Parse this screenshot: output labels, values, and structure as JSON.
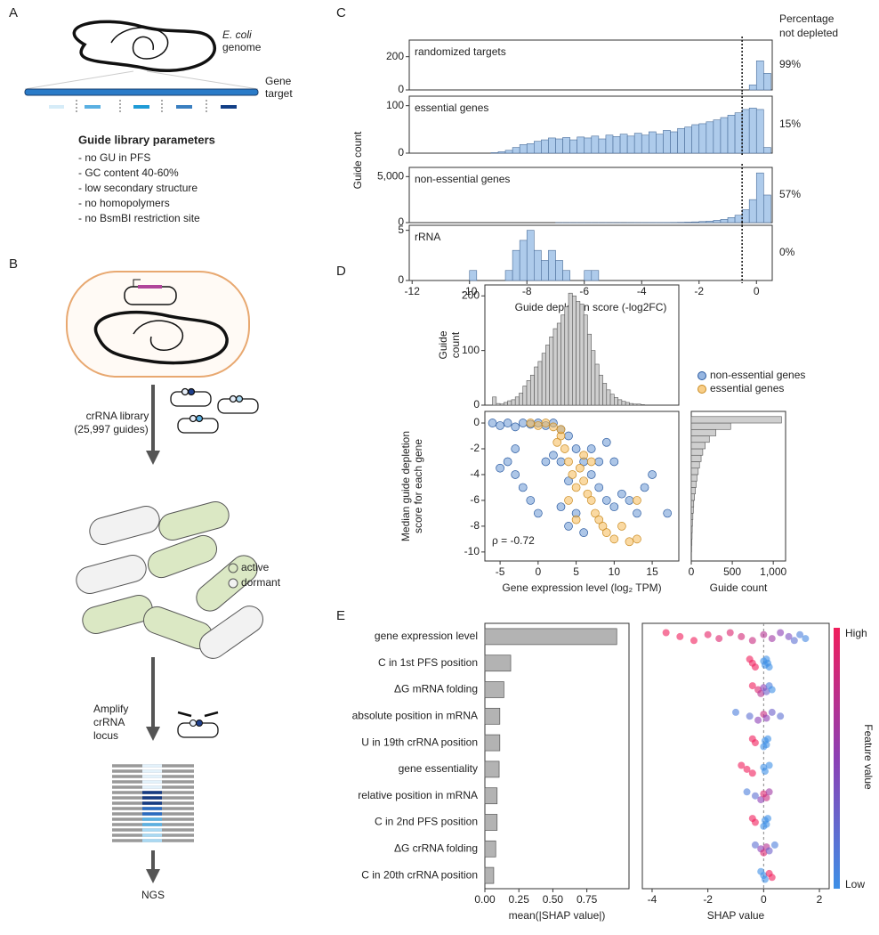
{
  "panel_labels": [
    "A",
    "B",
    "C",
    "D",
    "E"
  ],
  "panel_a": {
    "genome_label": [
      "E. coli",
      "genome"
    ],
    "gene_target_label": [
      "Gene",
      "target"
    ],
    "params_title": "Guide library parameters",
    "params": [
      "- no GU in PFS",
      "- GC content 40-60%",
      "- low secondary structure",
      "- no homopolymers",
      "- no BsmBI restriction site"
    ]
  },
  "panel_b": {
    "library_label": [
      "crRNA library",
      "(25,997 guides)"
    ],
    "legend": [
      "active",
      "dormant"
    ],
    "amplify_label": [
      "Amplify",
      "crRNA",
      "locus"
    ],
    "ngs": "NGS"
  },
  "panel_c": {
    "ylabel": "Guide count",
    "pct_header": [
      "Percentage",
      "not depleted"
    ]
  },
  "chart_data": [
    {
      "type": "histogram",
      "title": "randomized targets",
      "annotation": "99%",
      "color": "#aecbeb",
      "threshold": -0.5,
      "bins": [
        -12,
        -11.75,
        -11.5,
        -11.25,
        -11,
        -10.75,
        -10.5,
        -10.25,
        -10,
        -9.75,
        -9.5,
        -9.25,
        -9,
        -8.75,
        -8.5,
        -8.25,
        -8,
        -7.75,
        -7.5,
        -7.25,
        -7,
        -6.75,
        -6.5,
        -6.25,
        -6,
        -5.75,
        -5.5,
        -5.25,
        -5,
        -4.75,
        -4.5,
        -4.25,
        -4,
        -3.75,
        -3.5,
        -3.25,
        -3,
        -2.75,
        -2.5,
        -2.25,
        -2,
        -1.75,
        -1.5,
        -1.25,
        -1,
        -0.75,
        -0.5,
        -0.25,
        0,
        0.25,
        0.5
      ],
      "values": [
        0,
        0,
        0,
        0,
        0,
        0,
        0,
        0,
        0,
        0,
        0,
        0,
        0,
        0,
        0,
        0,
        0,
        0,
        0,
        0,
        0,
        0,
        0,
        0,
        0,
        0,
        0,
        0,
        0,
        0,
        0,
        0,
        0,
        0,
        0,
        0,
        0,
        0,
        0,
        0,
        0,
        0,
        0,
        0,
        0,
        0,
        0,
        30,
        175,
        100
      ],
      "xlim": [
        -12.1,
        0.55
      ],
      "ylim": [
        0,
        300
      ],
      "yticks": [
        0,
        200
      ]
    },
    {
      "type": "histogram",
      "title": "essential genes",
      "annotation": "15%",
      "color": "#aecbeb",
      "threshold": -0.5,
      "bins": [
        -12,
        -11.75,
        -11.5,
        -11.25,
        -11,
        -10.75,
        -10.5,
        -10.25,
        -10,
        -9.75,
        -9.5,
        -9.25,
        -9,
        -8.75,
        -8.5,
        -8.25,
        -8,
        -7.75,
        -7.5,
        -7.25,
        -7,
        -6.75,
        -6.5,
        -6.25,
        -6,
        -5.75,
        -5.5,
        -5.25,
        -5,
        -4.75,
        -4.5,
        -4.25,
        -4,
        -3.75,
        -3.5,
        -3.25,
        -3,
        -2.75,
        -2.5,
        -2.25,
        -2,
        -1.75,
        -1.5,
        -1.25,
        -1,
        -0.75,
        -0.5,
        -0.25,
        0,
        0.25,
        0.5
      ],
      "values": [
        0,
        0,
        0,
        0,
        0,
        0,
        0,
        0,
        0,
        0,
        0,
        1,
        3,
        6,
        12,
        18,
        20,
        25,
        28,
        32,
        30,
        33,
        28,
        34,
        32,
        36,
        30,
        38,
        35,
        40,
        36,
        42,
        38,
        45,
        40,
        48,
        45,
        52,
        55,
        60,
        62,
        66,
        70,
        75,
        80,
        85,
        92,
        95,
        92,
        12
      ],
      "xlim": [
        -12.1,
        0.55
      ],
      "ylim": [
        0,
        120
      ],
      "yticks": [
        0,
        100
      ]
    },
    {
      "type": "histogram",
      "title": "non-essential genes",
      "annotation": "57%",
      "color": "#aecbeb",
      "threshold": -0.5,
      "bins": [
        -12,
        -11.75,
        -11.5,
        -11.25,
        -11,
        -10.75,
        -10.5,
        -10.25,
        -10,
        -9.75,
        -9.5,
        -9.25,
        -9,
        -8.75,
        -8.5,
        -8.25,
        -8,
        -7.75,
        -7.5,
        -7.25,
        -7,
        -6.75,
        -6.5,
        -6.25,
        -6,
        -5.75,
        -5.5,
        -5.25,
        -5,
        -4.75,
        -4.5,
        -4.25,
        -4,
        -3.75,
        -3.5,
        -3.25,
        -3,
        -2.75,
        -2.5,
        -2.25,
        -2,
        -1.75,
        -1.5,
        -1.25,
        -1,
        -0.75,
        -0.5,
        -0.25,
        0,
        0.25,
        0.5
      ],
      "values": [
        0,
        0,
        0,
        0,
        0,
        0,
        0,
        0,
        0,
        0,
        0,
        0,
        0,
        0,
        0,
        0,
        0,
        0,
        0,
        0,
        2,
        2,
        2,
        2,
        2,
        2,
        2,
        2,
        2,
        2,
        5,
        8,
        10,
        12,
        15,
        20,
        25,
        35,
        50,
        80,
        120,
        160,
        250,
        350,
        550,
        800,
        1400,
        2500,
        5400,
        3000
      ],
      "xlim": [
        -12.1,
        0.55
      ],
      "ylim": [
        0,
        6000
      ],
      "yticks": [
        0,
        {
          "value": 5000,
          "label": "5,000"
        }
      ]
    },
    {
      "type": "histogram",
      "title": "rRNA",
      "annotation": "0%",
      "color": "#aecbeb",
      "threshold": -0.5,
      "bins": [
        -12,
        -11.75,
        -11.5,
        -11.25,
        -11,
        -10.75,
        -10.5,
        -10.25,
        -10,
        -9.75,
        -9.5,
        -9.25,
        -9,
        -8.75,
        -8.5,
        -8.25,
        -8,
        -7.75,
        -7.5,
        -7.25,
        -7,
        -6.75,
        -6.5,
        -6.25,
        -6,
        -5.75,
        -5.5,
        -5.25,
        -5,
        -4.75,
        -4.5,
        -4.25,
        -4,
        -3.75,
        -3.5,
        -3.25,
        -3,
        -2.75,
        -2.5,
        -2.25,
        -2,
        -1.75,
        -1.5,
        -1.25,
        -1,
        -0.75,
        -0.5,
        -0.25,
        0,
        0.25,
        0.5
      ],
      "values": [
        0,
        0,
        0,
        0,
        0,
        0,
        0,
        0,
        1,
        0,
        0,
        0,
        0,
        1,
        3,
        4,
        5,
        3,
        2,
        3,
        2,
        1,
        0,
        0,
        1,
        1,
        0,
        0,
        0,
        0,
        0,
        0,
        0,
        0,
        0,
        0,
        0,
        0,
        0,
        0,
        0,
        0,
        0,
        0,
        0,
        0,
        0,
        0,
        0,
        0
      ],
      "xlim": [
        -12.1,
        0.55
      ],
      "ylim": [
        0,
        5.5
      ],
      "yticks": [
        0,
        5
      ],
      "xticks": [
        -12,
        -10,
        -8,
        -6,
        -4,
        -2,
        0
      ],
      "xlabel": "Guide depletion score (-log2FC)"
    },
    {
      "type": "histogram",
      "color": "#cfcfcf",
      "ylabel": [
        "Guide",
        "count"
      ],
      "bins": [
        -6,
        -5.5,
        -5,
        -4.5,
        -4,
        -3.5,
        -3,
        -2.5,
        -2,
        -1.5,
        -1,
        -0.5,
        0,
        0.5,
        1,
        1.5,
        2,
        2.5,
        3,
        3.5,
        4,
        4.5,
        5,
        5.5,
        6,
        6.5,
        7,
        7.5,
        8,
        8.5,
        9,
        9.5,
        10,
        10.5,
        11,
        11.5,
        12,
        12.5,
        13,
        13.5,
        14
      ],
      "values": [
        15,
        3,
        2,
        5,
        8,
        10,
        15,
        22,
        35,
        45,
        55,
        70,
        80,
        95,
        110,
        125,
        140,
        150,
        165,
        180,
        205,
        200,
        190,
        185,
        165,
        130,
        100,
        75,
        55,
        40,
        28,
        20,
        14,
        10,
        7,
        5,
        3,
        2,
        2,
        1
      ],
      "xlim": [
        -7,
        18.5
      ],
      "ylim": [
        0,
        220
      ],
      "yticks": [
        0,
        100,
        200
      ]
    },
    {
      "type": "scatter",
      "xlim": [
        -7,
        18.5
      ],
      "ylim": [
        -10.7,
        0.9
      ],
      "xticks": [
        -5,
        0,
        5,
        10,
        15
      ],
      "yticks": [
        0,
        -2,
        -4,
        -6,
        -8,
        -10
      ],
      "xlabel": "Gene expression level (log₂ TPM)",
      "ylabel": [
        "Median guide depletion",
        "score for each gene"
      ],
      "annotation": "ρ = -0.72",
      "series": [
        {
          "name": "non-essential genes",
          "color": "#6a97d4",
          "x": [
            -6,
            -5,
            -4,
            -3,
            -2,
            -1,
            0,
            1,
            2,
            3,
            4,
            5,
            6,
            7,
            8,
            9,
            10,
            11,
            12,
            13,
            -5,
            -4,
            -3,
            -2,
            -1,
            0,
            1,
            2,
            3,
            4,
            5,
            6,
            7,
            8,
            9,
            10,
            15,
            17,
            14,
            -3,
            3,
            4
          ],
          "values": [
            0,
            -0.2,
            0,
            -0.3,
            0,
            -0.1,
            0,
            -0.2,
            0,
            -0.5,
            -1,
            -2,
            -3,
            -4,
            -5,
            -6,
            -6.5,
            -5.5,
            -6,
            -7,
            -3.5,
            -3,
            -4,
            -5,
            -6,
            -7,
            -3,
            -2.5,
            -6.5,
            -8,
            -7,
            -8.5,
            -2,
            -3,
            -1.5,
            -3,
            -4,
            -7,
            -5,
            -2,
            -3,
            -4.5
          ]
        },
        {
          "name": "essential genes",
          "color": "#f5b955",
          "x": [
            0,
            1,
            2,
            3,
            3.5,
            4,
            4.5,
            5,
            5.5,
            6,
            6.5,
            7,
            7.5,
            8,
            8.5,
            9,
            10,
            11,
            12,
            13,
            2.5,
            4,
            5,
            6,
            7,
            3,
            -1,
            13
          ],
          "values": [
            -0.2,
            0,
            -0.3,
            -1,
            -2,
            -3,
            -4,
            -5,
            -3.5,
            -4.5,
            -5.5,
            -6,
            -7,
            -7.5,
            -8,
            -8.5,
            -9,
            -8,
            -9.2,
            -9,
            -1.5,
            -6,
            -7.5,
            -2.5,
            -3,
            -0.5,
            0,
            -6
          ]
        }
      ]
    },
    {
      "type": "histogram",
      "orientation": "horizontal",
      "color": "#cfcfcf",
      "xlabel": "Guide count",
      "bins": [
        -10,
        -9.5,
        -9,
        -8.5,
        -8,
        -7.5,
        -7,
        -6.5,
        -6,
        -5.5,
        -5,
        -4.5,
        -4,
        -3.5,
        -3,
        -2.5,
        -2,
        -1.5,
        -1,
        -0.5,
        0,
        0.5
      ],
      "values": [
        5,
        8,
        10,
        12,
        15,
        20,
        25,
        30,
        40,
        50,
        60,
        70,
        85,
        100,
        120,
        140,
        170,
        220,
        300,
        480,
        1100
      ],
      "xlim": [
        0,
        1150
      ],
      "ylim": [
        -10.7,
        0.9
      ],
      "xticks": [
        0,
        500,
        {
          "value": 1000,
          "label": "1,000"
        }
      ]
    },
    {
      "type": "bar",
      "orientation": "horizontal",
      "color": "#b3b3b3",
      "xlabel": "mean(|SHAP value|)",
      "categories": [
        "gene expression level",
        "C in 1st PFS position",
        "ΔG mRNA folding",
        "absolute position in mRNA",
        "U in 19th crRNA position",
        "gene essentiality",
        "relative position in mRNA",
        "C in 2nd PFS position",
        "ΔG crRNA folding",
        "C in 20th crRNA position"
      ],
      "values": [
        0.97,
        0.19,
        0.14,
        0.11,
        0.11,
        0.105,
        0.09,
        0.09,
        0.08,
        0.065
      ],
      "xlim": [
        0,
        1.06
      ],
      "xticks": [
        {
          "value": 0,
          "label": "0.00"
        },
        {
          "value": 0.25,
          "label": "0.25"
        },
        {
          "value": 0.5,
          "label": "0.50"
        },
        {
          "value": 0.75,
          "label": "0.75"
        }
      ]
    },
    {
      "type": "beeswarm",
      "xlabel": "SHAP value",
      "xlim": [
        -4.35,
        2.35
      ],
      "xticks": [
        -4,
        -2,
        0,
        2
      ],
      "colors": {
        "low": "#3d8fe6",
        "mid": "#8c3fb5",
        "high": "#f01e5c"
      },
      "colorbar": {
        "high": "High",
        "low": "Low",
        "label": "Feature value"
      },
      "rows": [
        {
          "shap": [
            -3.5,
            -3,
            -2.5,
            -2,
            -1.6,
            -1.2,
            -0.8,
            -0.4,
            0,
            0.3,
            0.6,
            0.9,
            1.1,
            1.3,
            1.5
          ],
          "feature_value": [
            1,
            1,
            1,
            0.95,
            0.9,
            0.9,
            0.85,
            0.8,
            0.7,
            0.6,
            0.5,
            0.4,
            0.2,
            0.1,
            0.05
          ]
        },
        {
          "shap": [
            -0.5,
            -0.4,
            -0.3,
            0,
            0.05,
            0.1,
            0.15,
            0.2
          ],
          "feature_value": [
            1,
            1,
            1,
            0,
            0,
            0,
            0,
            0
          ]
        },
        {
          "shap": [
            -0.4,
            -0.2,
            -0.1,
            0,
            0.1,
            0.2,
            0.3
          ],
          "feature_value": [
            1,
            0.9,
            0.7,
            0.5,
            0.3,
            0.1,
            0
          ]
        },
        {
          "shap": [
            -1,
            -0.5,
            -0.2,
            0,
            0.1,
            0.3,
            0.6
          ],
          "feature_value": [
            0.1,
            0.2,
            0.5,
            0.8,
            0.5,
            0.3,
            0.2
          ]
        },
        {
          "shap": [
            -0.4,
            -0.3,
            0,
            0.05,
            0.1,
            0.15
          ],
          "feature_value": [
            1,
            1,
            0,
            0,
            0,
            0
          ]
        },
        {
          "shap": [
            -0.8,
            -0.6,
            -0.4,
            0,
            0.05,
            0.2
          ],
          "feature_value": [
            1,
            1,
            1,
            0,
            0,
            0
          ]
        },
        {
          "shap": [
            -0.6,
            -0.3,
            -0.1,
            0,
            0.1,
            0.2
          ],
          "feature_value": [
            0.1,
            0.2,
            0.5,
            0.9,
            0.8,
            0.6
          ]
        },
        {
          "shap": [
            -0.4,
            -0.3,
            0,
            0.05,
            0.1,
            0.15
          ],
          "feature_value": [
            1,
            1,
            0,
            0,
            0,
            0
          ]
        },
        {
          "shap": [
            -0.3,
            -0.1,
            0,
            0.1,
            0.2,
            0.4
          ],
          "feature_value": [
            0.2,
            0.5,
            0.9,
            0.7,
            0.3,
            0.1
          ]
        },
        {
          "shap": [
            -0.1,
            0,
            0.05,
            0.2,
            0.3
          ],
          "feature_value": [
            0,
            0,
            0,
            1,
            1
          ]
        }
      ]
    }
  ]
}
